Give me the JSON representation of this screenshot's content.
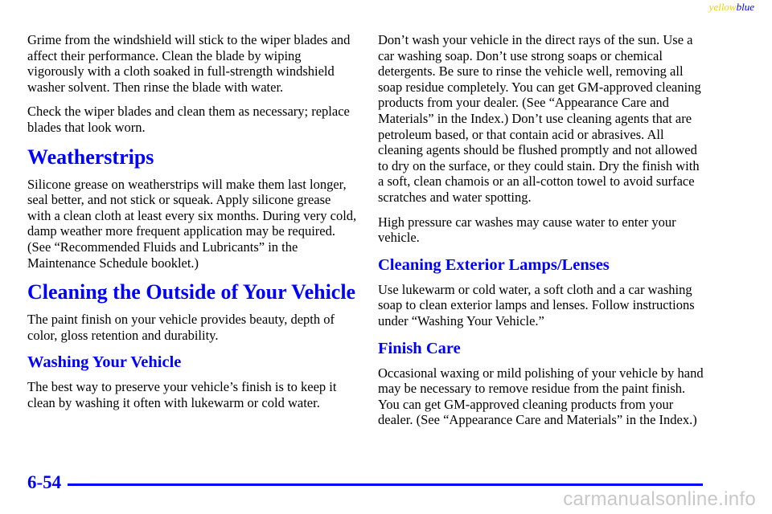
{
  "corner_tag": {
    "yellow": "yellow",
    "blue": "blue"
  },
  "left_column": {
    "intro_p1": "Grime from the windshield will stick to the wiper blades and affect their performance. Clean the blade by wiping vigorously with a cloth soaked in full‐strength windshield washer solvent. Then rinse the blade with water.",
    "intro_p2": "Check the wiper blades and clean them as necessary; replace blades that look worn.",
    "weatherstrips_heading": "Weatherstrips",
    "weatherstrips_p": "Silicone grease on weatherstrips will make them last longer, seal better, and not stick or squeak. Apply silicone grease with a clean cloth at least every six months. During very cold, damp weather more frequent application may be required. (See “Recommended Fluids and Lubricants” in the Maintenance Schedule booklet.)",
    "cleaning_outside_heading": "Cleaning the Outside of Your Vehicle",
    "cleaning_outside_p": "The paint finish on your vehicle provides beauty, depth of color, gloss retention and durability.",
    "washing_heading": "Washing Your Vehicle",
    "washing_p": "The best way to preserve your vehicle’s finish is to keep it clean by washing it often with lukewarm or cold water."
  },
  "right_column": {
    "washing_p2": "Don’t wash your vehicle in the direct rays of the sun. Use a car washing soap. Don’t use strong soaps or chemical detergents. Be sure to rinse the vehicle well, removing all soap residue completely. You can get GM‐approved cleaning products from your dealer. (See “Appearance Care and Materials” in the Index.) Don’t use cleaning agents that are petroleum based, or that contain acid or abrasives. All cleaning agents should be flushed promptly and not allowed to dry on the surface, or they could stain. Dry the finish with a soft, clean chamois or an all‐cotton towel to avoid surface scratches and water spotting.",
    "washing_p3": "High pressure car washes may cause water to enter your vehicle.",
    "lamps_heading": "Cleaning Exterior Lamps/Lenses",
    "lamps_p": "Use lukewarm or cold water, a soft cloth and a car washing soap to clean exterior lamps and lenses. Follow instructions under “Washing Your Vehicle.”",
    "finish_heading": "Finish Care",
    "finish_p": "Occasional waxing or mild polishing of your vehicle by hand may be necessary to remove residue from the paint finish. You can get GM‐approved cleaning products from your dealer. (See “Appearance Care and Materials” in the Index.)"
  },
  "footer": {
    "page_number": "6-54",
    "watermark": "carmanualsonline.info"
  },
  "colors": {
    "heading_blue": "#0000ff",
    "tag_yellow": "#f2d200",
    "watermark_gray": "#c8c8c8"
  }
}
